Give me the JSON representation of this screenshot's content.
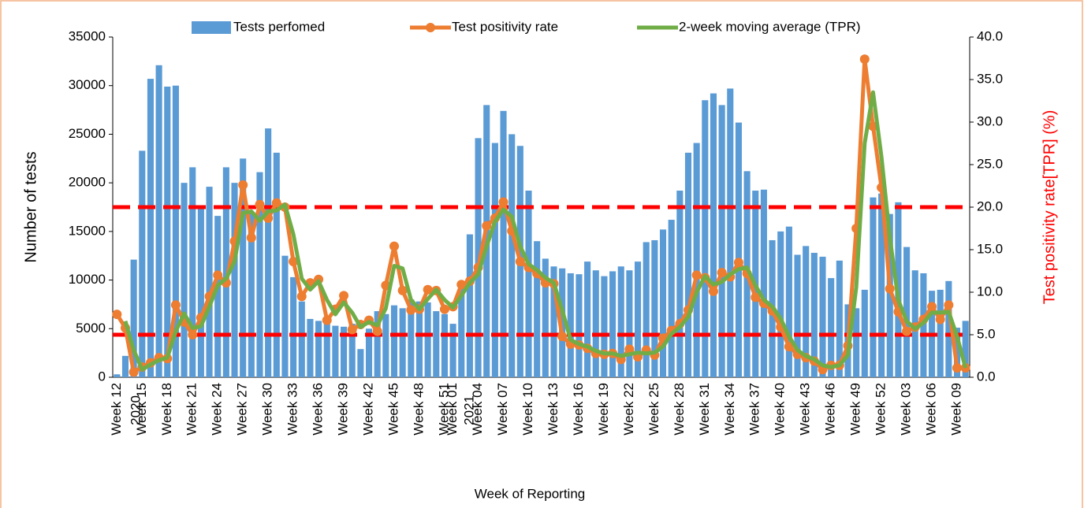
{
  "chart_data": {
    "type": "bar-line",
    "x_label": "Week of Reporting",
    "y_label": "Number of tests",
    "y2_label": "Test positivity rate[TPR] (%)",
    "annotations": [
      "2020",
      "2021"
    ],
    "categories": [
      "Week 12",
      null,
      null,
      "Week 15",
      null,
      null,
      "Week 18",
      null,
      null,
      "Week 21",
      null,
      null,
      "Week 24",
      null,
      null,
      "Week 27",
      null,
      null,
      "Week 30",
      null,
      null,
      "Week 33",
      null,
      null,
      "Week 36",
      null,
      null,
      "Week 39",
      null,
      null,
      "Week 42",
      null,
      null,
      "Week 45",
      null,
      null,
      "Week 48",
      null,
      null,
      "Week 51",
      "Week 01",
      null,
      null,
      "Week 04",
      null,
      null,
      "Week 07",
      null,
      null,
      "Week 10",
      null,
      null,
      "Week 13",
      null,
      null,
      "Week 16",
      null,
      null,
      "Week 19",
      null,
      null,
      "Week 22",
      null,
      null,
      "Week 25",
      null,
      null,
      "Week 28",
      null,
      null,
      "Week 31",
      null,
      null,
      "Week 34",
      null,
      null,
      "Week 37",
      null,
      null,
      "Week 40",
      null,
      null,
      "Week 43",
      null,
      null,
      "Week 46",
      null,
      null,
      "Week 49",
      null,
      null,
      "Week 52",
      null,
      null,
      "Week 03",
      null,
      null,
      "Week 06",
      null,
      null,
      "Week 09",
      null
    ],
    "series": [
      {
        "name": "Tests perfomed",
        "kind": "bar",
        "color": "#5b9bd5",
        "values": [
          300,
          2200,
          12100,
          23300,
          30700,
          32100,
          29900,
          30000,
          20000,
          21600,
          17400,
          19600,
          16600,
          21600,
          20000,
          22500,
          17000,
          21100,
          25600,
          23100,
          12500,
          10300,
          7800,
          6000,
          5800,
          6100,
          5300,
          5200,
          5500,
          2900,
          5000,
          6800,
          6500,
          7400,
          7100,
          8000,
          7800,
          7700,
          6800,
          6500,
          5500,
          9600,
          14700,
          24600,
          28000,
          24100,
          27400,
          25000,
          23800,
          19200,
          14000,
          12200,
          11400,
          11200,
          10700,
          10600,
          11900,
          11000,
          10400,
          10900,
          11400,
          11000,
          11900,
          13900,
          14100,
          15200,
          16200,
          19200,
          23100,
          24100,
          28500,
          29200,
          28000,
          29700,
          26200,
          21200,
          19200,
          19300,
          14100,
          15000,
          15500,
          12600,
          13500,
          12800,
          12400,
          10200,
          12000,
          7500,
          7100,
          9000,
          18500,
          18900,
          16800,
          18000,
          13400,
          11000,
          10700,
          8900,
          9000,
          9900,
          5100,
          5800
        ]
      },
      {
        "name": "Test positivity rate",
        "kind": "line-marker",
        "axis": "y2",
        "color": "#ed7d31",
        "values": [
          7.4,
          5.8,
          0.6,
          1.2,
          1.7,
          2.3,
          2.2,
          8.5,
          6.5,
          5.0,
          7.0,
          9.5,
          12.0,
          11.1,
          16.0,
          22.6,
          16.4,
          20.3,
          18.7,
          20.5,
          20.0,
          13.6,
          9.5,
          11.1,
          11.5,
          6.7,
          8.0,
          9.6,
          5.6,
          6.2,
          6.7,
          5.4,
          10.8,
          15.4,
          10.2,
          7.9,
          8.0,
          10.3,
          10.2,
          8.0,
          8.3,
          10.9,
          11.3,
          12.9,
          17.8,
          18.7,
          20.6,
          17.2,
          13.6,
          12.9,
          12.2,
          11.1,
          11.0,
          4.8,
          3.9,
          3.8,
          3.4,
          2.8,
          2.7,
          2.8,
          2.1,
          3.3,
          2.4,
          3.2,
          2.6,
          4.6,
          5.5,
          6.3,
          7.9,
          12.0,
          11.7,
          10.1,
          12.3,
          11.8,
          13.5,
          12.2,
          9.4,
          8.7,
          7.8,
          5.9,
          3.6,
          2.7,
          2.3,
          1.9,
          0.9,
          1.4,
          1.4,
          3.7,
          17.5,
          37.4,
          29.5,
          22.3,
          10.4,
          7.7,
          5.4,
          5.9,
          6.8,
          8.3,
          6.8,
          8.5,
          1.1,
          1.1
        ]
      },
      {
        "name": "2-week moving average (TPR)",
        "kind": "line",
        "axis": "y2",
        "color": "#70ad47",
        "values": [
          null,
          6.6,
          3.2,
          0.9,
          1.5,
          2.0,
          2.3,
          5.4,
          7.5,
          5.8,
          6.0,
          8.3,
          10.8,
          11.6,
          13.6,
          19.3,
          19.5,
          18.4,
          19.5,
          19.6,
          20.3,
          16.8,
          11.6,
          10.3,
          11.3,
          9.1,
          7.4,
          8.8,
          7.6,
          5.9,
          6.5,
          6.1,
          8.1,
          13.1,
          12.8,
          9.1,
          8.0,
          9.2,
          10.3,
          9.1,
          8.2,
          9.6,
          11.1,
          12.1,
          15.4,
          18.3,
          19.7,
          18.9,
          15.4,
          13.3,
          12.6,
          11.7,
          11.1,
          7.9,
          4.4,
          3.9,
          3.6,
          3.1,
          2.8,
          2.8,
          2.5,
          2.7,
          2.9,
          2.8,
          2.9,
          3.6,
          5.1,
          5.9,
          7.1,
          10.0,
          11.9,
          10.9,
          11.2,
          12.1,
          12.7,
          12.9,
          10.8,
          9.1,
          8.3,
          6.9,
          4.8,
          3.2,
          2.5,
          2.1,
          1.4,
          1.2,
          1.4,
          2.6,
          10.6,
          27.5,
          33.5,
          25.9,
          16.4,
          9.1,
          6.6,
          5.7,
          6.4,
          7.6,
          7.6,
          7.7,
          4.8,
          1.1
        ]
      }
    ],
    "reference_lines": {
      "axis": "y2",
      "color": "#ff0000",
      "values": [
        20,
        5
      ]
    },
    "ylim": [
      0,
      35000
    ],
    "yticks": [
      0,
      5000,
      10000,
      15000,
      20000,
      25000,
      30000,
      35000
    ],
    "y2lim": [
      0,
      40
    ],
    "y2ticks": [
      {
        "value": 0,
        "label": "0.0"
      },
      {
        "value": 5,
        "label": "5.0"
      },
      {
        "value": 10,
        "label": "10.0"
      },
      {
        "value": 15,
        "label": "15.0"
      },
      {
        "value": 20,
        "label": "20.0"
      },
      {
        "value": 25,
        "label": "25.0"
      },
      {
        "value": 30,
        "label": "30.0"
      },
      {
        "value": 35,
        "label": "35.0"
      },
      {
        "value": 40,
        "label": "40.0"
      }
    ],
    "y2_label_color": "#ff0000",
    "legend": "top"
  }
}
